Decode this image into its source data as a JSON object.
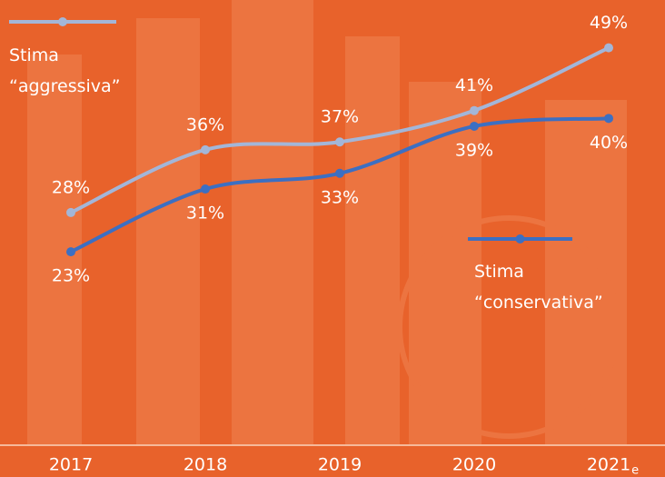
{
  "chart_data": {
    "type": "line",
    "categories": [
      "2017",
      "2018",
      "2019",
      "2020",
      "2021"
    ],
    "category_subscripts": [
      null,
      null,
      null,
      null,
      "e"
    ],
    "series": [
      {
        "name": "Stima\n“aggressiva”",
        "color": "#a3b6d8",
        "values": [
          28,
          36,
          37,
          41,
          49
        ],
        "value_labels": [
          "28%",
          "36%",
          "37%",
          "41%",
          "49%"
        ]
      },
      {
        "name": "Stima\n“conservativa”",
        "color": "#3c6fc2",
        "values": [
          23,
          31,
          33,
          39,
          40
        ],
        "value_labels": [
          "23%",
          "31%",
          "33%",
          "39%",
          "40%"
        ]
      }
    ],
    "ylim": [
      20,
      50
    ]
  }
}
